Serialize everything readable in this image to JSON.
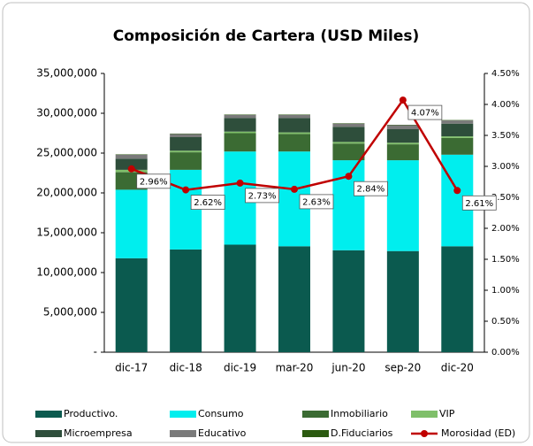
{
  "chart_data": {
    "type": "bar",
    "title": "Composición de Cartera (USD Miles)",
    "categories": [
      "dic-17",
      "dic-18",
      "dic-19",
      "mar-20",
      "jun-20",
      "sep-20",
      "dic-20"
    ],
    "series": [
      {
        "name": "Productivo.",
        "color": "#0b5a4f",
        "values": [
          11800000,
          12900000,
          13500000,
          13300000,
          12800000,
          12700000,
          13300000
        ]
      },
      {
        "name": "Consumo",
        "color": "#00eeee",
        "values": [
          8600000,
          10000000,
          11700000,
          11900000,
          11300000,
          11400000,
          11500000
        ]
      },
      {
        "name": "Inmobiliario",
        "color": "#3b6b33",
        "values": [
          2200000,
          2200000,
          2300000,
          2200000,
          2100000,
          2000000,
          2100000
        ]
      },
      {
        "name": "VIP",
        "color": "#7fbf6a",
        "values": [
          300000,
          200000,
          200000,
          200000,
          200000,
          200000,
          200000
        ]
      },
      {
        "name": "Microempresa",
        "color": "#2e4e3b",
        "values": [
          1400000,
          1700000,
          1700000,
          1800000,
          1900000,
          1700000,
          1600000
        ]
      },
      {
        "name": "Educativo",
        "color": "#7a7a7a",
        "values": [
          500000,
          400000,
          400000,
          400000,
          400000,
          500000,
          400000
        ]
      },
      {
        "name": "D.Fiduciarios",
        "color": "#2b5a10",
        "values": [
          50000,
          50000,
          50000,
          50000,
          50000,
          50000,
          50000
        ]
      },
      {
        "name": "Morosidad (ED)",
        "color": "#c00000",
        "axis": "y2",
        "type": "line",
        "values": [
          2.96,
          2.62,
          2.73,
          2.63,
          2.84,
          4.07,
          2.61
        ],
        "value_labels": [
          "2.96%",
          "2.62%",
          "2.73%",
          "2.63%",
          "2.84%",
          "4.07%",
          "2.61%"
        ]
      }
    ],
    "ylim": [
      0,
      35000000
    ],
    "yticks": [
      {
        "value": 0,
        "label": "-"
      },
      {
        "value": 5000000,
        "label": "5,000,000"
      },
      {
        "value": 10000000,
        "label": "10,000,000"
      },
      {
        "value": 15000000,
        "label": "15,000,000"
      },
      {
        "value": 20000000,
        "label": "20,000,000"
      },
      {
        "value": 25000000,
        "label": "25,000,000"
      },
      {
        "value": 30000000,
        "label": "30,000,000"
      },
      {
        "value": 35000000,
        "label": "35,000,000"
      }
    ],
    "y2lim": [
      0,
      4.5
    ],
    "y2ticks": [
      {
        "value": 0,
        "label": "0.00%"
      },
      {
        "value": 0.5,
        "label": "0.50%"
      },
      {
        "value": 1,
        "label": "1.00%"
      },
      {
        "value": 1.5,
        "label": "1.50%"
      },
      {
        "value": 2,
        "label": "2.00%"
      },
      {
        "value": 2.5,
        "label": "2.50%"
      },
      {
        "value": 3,
        "label": "3.00%"
      },
      {
        "value": 3.5,
        "label": "3.50%"
      },
      {
        "value": 4,
        "label": "4.00%"
      },
      {
        "value": 4.5,
        "label": "4.50%"
      }
    ],
    "grid": false
  }
}
